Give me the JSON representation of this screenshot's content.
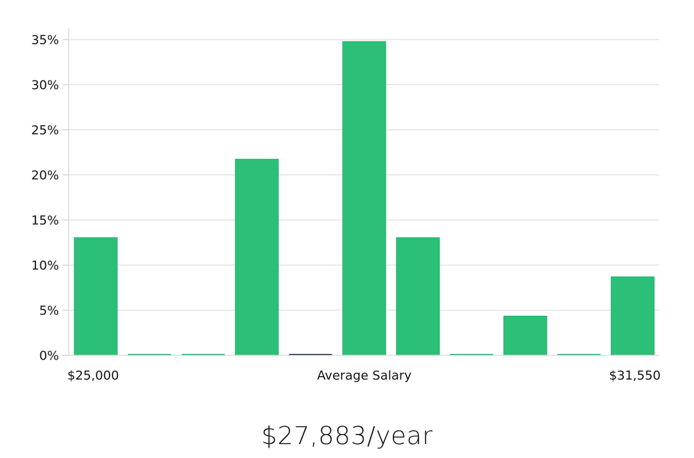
{
  "chart_data": {
    "type": "bar",
    "title": "",
    "xlabel": "Average Salary",
    "ylabel": "",
    "categories": [
      "bin1",
      "bin2",
      "bin3",
      "bin4",
      "bin5",
      "bin6",
      "bin7",
      "bin8",
      "bin9",
      "bin10",
      "bin11"
    ],
    "x_range_labels": {
      "min": "$25,000",
      "center": "Average Salary",
      "max": "$31,550"
    },
    "values": [
      13.04,
      0,
      0,
      21.74,
      0,
      34.78,
      13.04,
      0,
      4.35,
      0,
      8.7
    ],
    "highlight_index": 4,
    "y_ticks": [
      0,
      5,
      10,
      15,
      20,
      25,
      30,
      35
    ],
    "y_tick_labels": [
      "0%",
      "5%",
      "10%",
      "15%",
      "20%",
      "25%",
      "30%",
      "35%"
    ],
    "ylim": [
      0,
      36.2
    ],
    "grid": true,
    "legend": null,
    "colors": {
      "bar": "#2bbf78",
      "bar_edge": "#25b06d",
      "highlight": "#1b1f4a",
      "grid": "#e3e3e3",
      "axis": "#cccccc"
    }
  },
  "summary": {
    "average_salary": "$27,883/year"
  }
}
